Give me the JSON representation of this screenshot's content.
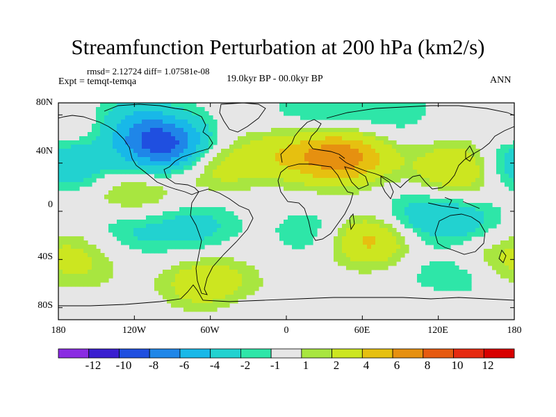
{
  "title": "Streamfunction Perturbation at 200 hPa (km2/s)",
  "stats": "rmsd= 2.12724 diff= 1.07581e-08",
  "experiment": "Expt = temqt-temqa",
  "period": "19.0kyr BP - 00.0kyr BP",
  "season": "ANN",
  "chart_data": {
    "type": "heatmap",
    "variable": "Streamfunction Perturbation",
    "level": "200 hPa",
    "units": "km2/s",
    "projection": "cylindrical equidistant",
    "x_ticks": [
      "180",
      "120W",
      "60W",
      "0",
      "60E",
      "120E",
      "180"
    ],
    "y_ticks": [
      "80N",
      "40N",
      "0",
      "40S",
      "80S"
    ],
    "xlim": [
      -180,
      180
    ],
    "ylim": [
      -90,
      90
    ],
    "colorbar": {
      "labels": [
        "-12",
        "-10",
        "-8",
        "-6",
        "-4",
        "-2",
        "-1",
        "1",
        "2",
        "4",
        "6",
        "8",
        "10",
        "12"
      ],
      "levels": [
        -12,
        -10,
        -8,
        -6,
        -4,
        -2,
        -1,
        1,
        2,
        4,
        6,
        8,
        10,
        12
      ],
      "colors": [
        "#8a2be2",
        "#3a1fd0",
        "#1f4fe0",
        "#1f86e8",
        "#18b8e8",
        "#22d2d0",
        "#2ee6a8",
        "#e6e6e6",
        "#a8e640",
        "#cce620",
        "#e6c010",
        "#e69010",
        "#e65a10",
        "#e62a10",
        "#d80000"
      ]
    },
    "anomaly_centers": [
      {
        "lon": -92,
        "lat": 52,
        "value": -9
      },
      {
        "lon": -118,
        "lat": 72,
        "value": -4
      },
      {
        "lon": -165,
        "lat": 40,
        "value": -3
      },
      {
        "lon": -130,
        "lat": -15,
        "value": -3
      },
      {
        "lon": -75,
        "lat": -12,
        "value": -3
      },
      {
        "lon": 30,
        "lat": -18,
        "value": -3
      },
      {
        "lon": 100,
        "lat": -5,
        "value": -3
      },
      {
        "lon": 140,
        "lat": -10,
        "value": -3
      },
      {
        "lon": 130,
        "lat": -55,
        "value": -3
      },
      {
        "lon": -25,
        "lat": -75,
        "value": -2
      },
      {
        "lon": 20,
        "lat": 82,
        "value": -2
      },
      {
        "lon": 80,
        "lat": 82,
        "value": -2
      },
      {
        "lon": 175,
        "lat": 40,
        "value": -3
      },
      {
        "lon": -60,
        "lat": 40,
        "value": 4
      },
      {
        "lon": -128,
        "lat": 20,
        "value": 2
      },
      {
        "lon": -165,
        "lat": 62,
        "value": 2
      },
      {
        "lon": -165,
        "lat": -45,
        "value": 2
      },
      {
        "lon": -60,
        "lat": -60,
        "value": 4
      },
      {
        "lon": 45,
        "lat": 45,
        "value": 7
      },
      {
        "lon": 0,
        "lat": 48,
        "value": 3
      },
      {
        "lon": 140,
        "lat": 35,
        "value": 5
      },
      {
        "lon": 63,
        "lat": -22,
        "value": 6
      },
      {
        "lon": -5,
        "lat": -75,
        "value": 2
      },
      {
        "lon": 150,
        "lat": -35,
        "value": 2
      },
      {
        "lon": -110,
        "lat": 5,
        "value": 1.5
      },
      {
        "lon": -155,
        "lat": -20,
        "value": 1.5
      },
      {
        "lon": 120,
        "lat": -78,
        "value": 1.5
      }
    ]
  }
}
